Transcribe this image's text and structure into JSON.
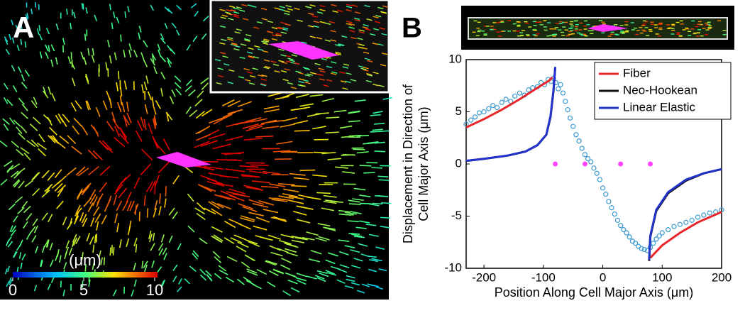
{
  "panel_a": {
    "label": "A",
    "colorbar": {
      "title": "(μm)",
      "lim": [
        0,
        10
      ],
      "ticks": [
        0,
        5,
        10
      ]
    }
  },
  "chart_data": {
    "type": "scatter",
    "panel_label": "B",
    "xlabel": "Position Along Cell Major Axis (μm)",
    "ylabel": [
      "Displacement in Direction of",
      "Cell Major Axis (μm)"
    ],
    "xlim": [
      -230,
      200
    ],
    "ylim": [
      -10,
      10
    ],
    "xticks": [
      -200,
      -100,
      0,
      100,
      200
    ],
    "yticks": [
      10,
      5,
      0,
      -5,
      -10
    ],
    "grid": false,
    "legend": "upper right",
    "points": {
      "color": "#3a9ad0",
      "x": [
        -230,
        -222,
        -215,
        -208,
        -200,
        -192,
        -185,
        -178,
        -170,
        -163,
        -155,
        -148,
        -140,
        -132,
        -125,
        -118,
        -110,
        -104,
        -98,
        -92,
        -87,
        -83,
        -79,
        -75,
        -71,
        -67,
        -63,
        -59,
        -55,
        -50,
        -45,
        -40,
        -35,
        -30,
        -25,
        -20,
        -15,
        -10,
        -5,
        0,
        5,
        10,
        15,
        20,
        25,
        30,
        35,
        40,
        45,
        50,
        55,
        60,
        65,
        70,
        75,
        80,
        85,
        90,
        95,
        100,
        110,
        120,
        130,
        140,
        150,
        160,
        170,
        180,
        190,
        200
      ],
      "values": [
        3.8,
        4.2,
        4.5,
        4.9,
        5.0,
        5.3,
        5.6,
        5.4,
        5.9,
        6.2,
        6.0,
        6.5,
        6.8,
        6.6,
        7.1,
        7.3,
        7.4,
        7.8,
        7.6,
        8.1,
        7.9,
        8.2,
        7.8,
        7.2,
        7.6,
        6.8,
        6.0,
        5.2,
        4.4,
        3.6,
        2.8,
        2.2,
        1.5,
        0.9,
        0.5,
        0.2,
        -0.4,
        -0.9,
        -1.5,
        -2.3,
        -2.9,
        -3.6,
        -4.2,
        -4.8,
        -5.4,
        -5.9,
        -6.3,
        -6.6,
        -7.0,
        -7.4,
        -7.6,
        -7.9,
        -8.1,
        -8.2,
        -8.3,
        -8.0,
        -7.6,
        -7.2,
        -6.9,
        -6.6,
        -6.3,
        -6.0,
        -5.8,
        -5.6,
        -5.4,
        -5.1,
        -4.9,
        -4.7,
        -4.6,
        -4.4
      ]
    },
    "markers": {
      "color": "#ff44ff",
      "x": [
        -80,
        -30,
        30,
        80
      ],
      "values": [
        0,
        0,
        0,
        0
      ]
    },
    "series": [
      {
        "name": "Fiber",
        "color": "#e8262a",
        "x": [
          -230,
          -200,
          -170,
          -140,
          -110,
          -90,
          -85,
          null,
          80,
          100,
          130,
          160,
          200
        ],
        "values": [
          3.5,
          4.3,
          5.2,
          6.2,
          7.3,
          8.0,
          8.3,
          null,
          -9.0,
          -7.8,
          -6.6,
          -5.6,
          -4.6
        ]
      },
      {
        "name": "Neo-Hookean",
        "color": "#111111",
        "x": [
          -230,
          -200,
          -160,
          -130,
          -110,
          -95,
          -88,
          -83,
          -80,
          null,
          78,
          80,
          90,
          110,
          140,
          170,
          200
        ],
        "values": [
          0.3,
          0.5,
          0.8,
          1.2,
          1.8,
          2.8,
          4.5,
          7.0,
          9.3,
          null,
          -9.3,
          -7.0,
          -4.5,
          -2.8,
          -1.6,
          -0.9,
          -0.5
        ]
      },
      {
        "name": "Linear Elastic",
        "color": "#2233cc",
        "x": [
          -230,
          -200,
          -160,
          -130,
          -110,
          -95,
          -88,
          -83,
          -80,
          null,
          78,
          80,
          90,
          110,
          140,
          170,
          200
        ],
        "values": [
          0.3,
          0.5,
          0.8,
          1.2,
          1.8,
          2.8,
          4.6,
          7.1,
          9.3,
          null,
          -9.2,
          -6.9,
          -4.4,
          -2.7,
          -1.5,
          -0.9,
          -0.5
        ]
      }
    ]
  }
}
